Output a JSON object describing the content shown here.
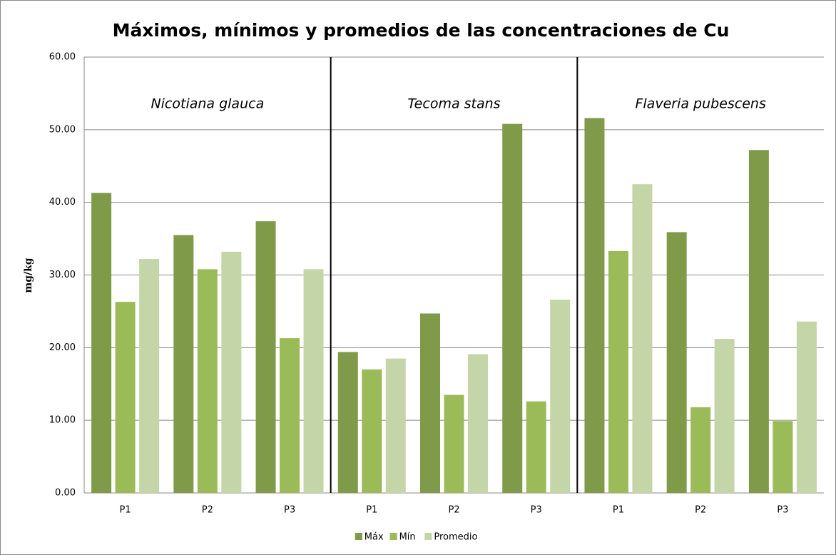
{
  "chart_data": {
    "type": "bar",
    "title": "Máximos, mínimos y promedios de las concentraciones de Cu",
    "y_label": "mg/kg",
    "groups": [
      "Nicotiana glauca",
      "Tecoma stans",
      "Flaveria pubescens"
    ],
    "categories": [
      "P1",
      "P2",
      "P3",
      "P1",
      "P2",
      "P3",
      "P1",
      "P2",
      "P3"
    ],
    "series": [
      {
        "name": "Máx",
        "color": "#7f9a48",
        "values": [
          41.3,
          35.5,
          37.4,
          19.4,
          24.7,
          50.8,
          51.6,
          35.9,
          47.2
        ]
      },
      {
        "name": "Mín",
        "color": "#9bbb59",
        "values": [
          26.3,
          30.8,
          21.3,
          17.0,
          13.5,
          12.6,
          33.3,
          11.8,
          9.9
        ]
      },
      {
        "name": "Promedio",
        "color": "#c4d5a8",
        "values": [
          32.2,
          33.2,
          30.8,
          18.5,
          19.1,
          26.6,
          42.5,
          21.2,
          23.6
        ]
      }
    ],
    "ylim": [
      0,
      60
    ],
    "yticks": [
      {
        "value": 0,
        "label": "0.00"
      },
      {
        "value": 10,
        "label": "10.00"
      },
      {
        "value": 20,
        "label": "20.00"
      },
      {
        "value": 30,
        "label": "30.00"
      },
      {
        "value": 40,
        "label": "40.00"
      },
      {
        "value": 50,
        "label": "50.00"
      },
      {
        "value": 60,
        "label": "60.00"
      }
    ],
    "grid": true,
    "legend": "bottom"
  }
}
